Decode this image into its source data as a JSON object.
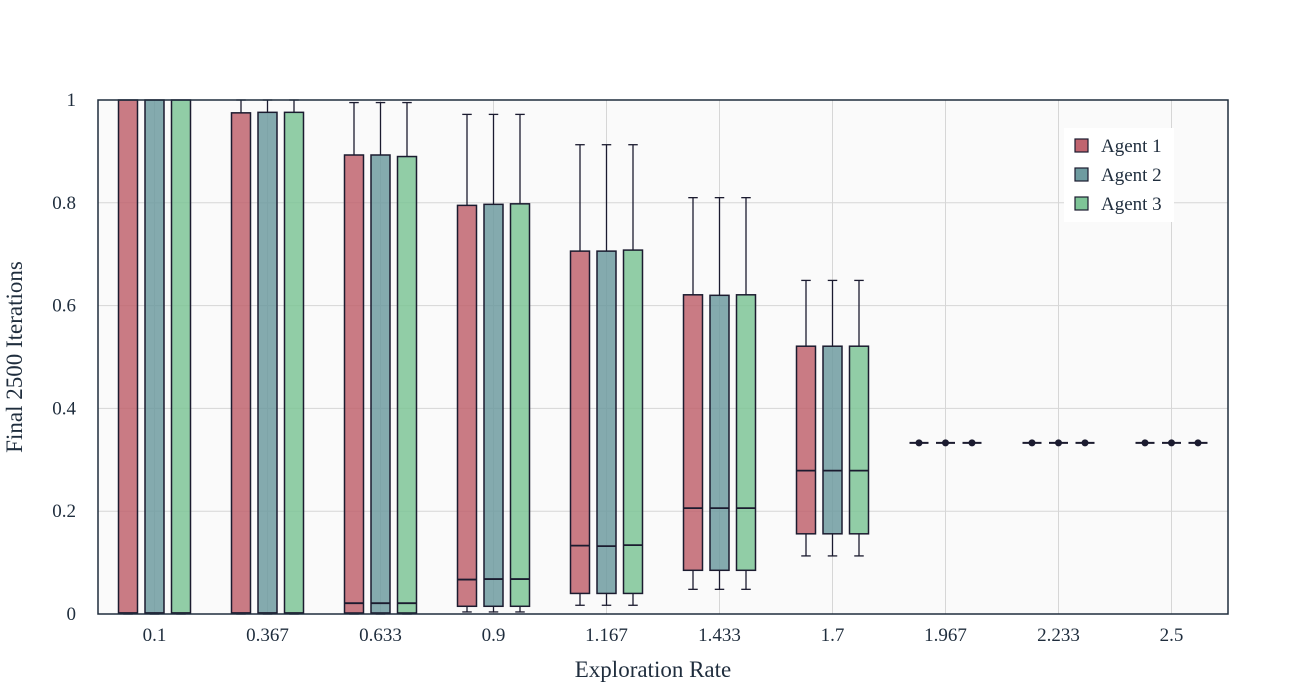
{
  "chart_data": {
    "type": "box",
    "title": "",
    "xlabel": "Exploration Rate",
    "ylabel": "Final 2500 Iterations",
    "ylim": [
      0,
      1
    ],
    "y_ticks": [
      0,
      0.2,
      0.4,
      0.6,
      0.8,
      1
    ],
    "y_tick_labels": [
      "0",
      "0.2",
      "0.4",
      "0.6",
      "0.8",
      "1"
    ],
    "grid": true,
    "legend_position": "top-right",
    "categories": [
      "0.1",
      "0.367",
      "0.633",
      "0.9",
      "1.167",
      "1.433",
      "1.7",
      "1.967",
      "2.233",
      "2.5"
    ],
    "series": [
      {
        "name": "Agent 1",
        "color": "#c0646f",
        "boxes": [
          {
            "min": 0,
            "q1": 0.001,
            "median": 0.002,
            "q3": 1.0,
            "max": 1.0
          },
          {
            "min": 0,
            "q1": 0.001,
            "median": 0.002,
            "q3": 0.975,
            "max": 1.0
          },
          {
            "min": 0,
            "q1": 0.002,
            "median": 0.021,
            "q3": 0.893,
            "max": 0.995
          },
          {
            "min": 0.004,
            "q1": 0.015,
            "median": 0.067,
            "q3": 0.795,
            "max": 0.972
          },
          {
            "min": 0.017,
            "q1": 0.04,
            "median": 0.133,
            "q3": 0.706,
            "max": 0.913
          },
          {
            "min": 0.048,
            "q1": 0.085,
            "median": 0.206,
            "q3": 0.621,
            "max": 0.81
          },
          {
            "min": 0.113,
            "q1": 0.156,
            "median": 0.279,
            "q3": 0.521,
            "max": 0.649
          },
          {
            "min": 0.333,
            "q1": 0.333,
            "median": 0.333,
            "q3": 0.333,
            "max": 0.333
          },
          {
            "min": 0.333,
            "q1": 0.333,
            "median": 0.333,
            "q3": 0.333,
            "max": 0.333
          },
          {
            "min": 0.333,
            "q1": 0.333,
            "median": 0.333,
            "q3": 0.333,
            "max": 0.333
          }
        ]
      },
      {
        "name": "Agent 2",
        "color": "#6e9ba0",
        "boxes": [
          {
            "min": 0,
            "q1": 0.001,
            "median": 0.002,
            "q3": 1.0,
            "max": 1.0
          },
          {
            "min": 0,
            "q1": 0.001,
            "median": 0.002,
            "q3": 0.976,
            "max": 1.0
          },
          {
            "min": 0,
            "q1": 0.002,
            "median": 0.021,
            "q3": 0.893,
            "max": 0.995
          },
          {
            "min": 0.004,
            "q1": 0.015,
            "median": 0.068,
            "q3": 0.797,
            "max": 0.972
          },
          {
            "min": 0.017,
            "q1": 0.04,
            "median": 0.132,
            "q3": 0.706,
            "max": 0.913
          },
          {
            "min": 0.048,
            "q1": 0.085,
            "median": 0.206,
            "q3": 0.62,
            "max": 0.81
          },
          {
            "min": 0.113,
            "q1": 0.156,
            "median": 0.279,
            "q3": 0.521,
            "max": 0.649
          },
          {
            "min": 0.333,
            "q1": 0.333,
            "median": 0.333,
            "q3": 0.333,
            "max": 0.333
          },
          {
            "min": 0.333,
            "q1": 0.333,
            "median": 0.333,
            "q3": 0.333,
            "max": 0.333
          },
          {
            "min": 0.333,
            "q1": 0.333,
            "median": 0.333,
            "q3": 0.333,
            "max": 0.333
          }
        ]
      },
      {
        "name": "Agent 3",
        "color": "#7ec497",
        "boxes": [
          {
            "min": 0,
            "q1": 0.001,
            "median": 0.002,
            "q3": 1.0,
            "max": 1.0
          },
          {
            "min": 0,
            "q1": 0.001,
            "median": 0.002,
            "q3": 0.976,
            "max": 1.0
          },
          {
            "min": 0,
            "q1": 0.002,
            "median": 0.021,
            "q3": 0.89,
            "max": 0.995
          },
          {
            "min": 0.004,
            "q1": 0.015,
            "median": 0.068,
            "q3": 0.798,
            "max": 0.972
          },
          {
            "min": 0.017,
            "q1": 0.04,
            "median": 0.134,
            "q3": 0.708,
            "max": 0.913
          },
          {
            "min": 0.048,
            "q1": 0.085,
            "median": 0.206,
            "q3": 0.621,
            "max": 0.81
          },
          {
            "min": 0.113,
            "q1": 0.156,
            "median": 0.279,
            "q3": 0.521,
            "max": 0.649
          },
          {
            "min": 0.333,
            "q1": 0.333,
            "median": 0.333,
            "q3": 0.333,
            "max": 0.333
          },
          {
            "min": 0.333,
            "q1": 0.333,
            "median": 0.333,
            "q3": 0.333,
            "max": 0.333
          },
          {
            "min": 0.333,
            "q1": 0.333,
            "median": 0.333,
            "q3": 0.333,
            "max": 0.333
          }
        ]
      }
    ],
    "colors": {
      "plot_background": "#fafafa",
      "grid": "#d6d6d6",
      "axis_line": "#1f2d3d",
      "box_outline": "#1b1b2f"
    }
  }
}
